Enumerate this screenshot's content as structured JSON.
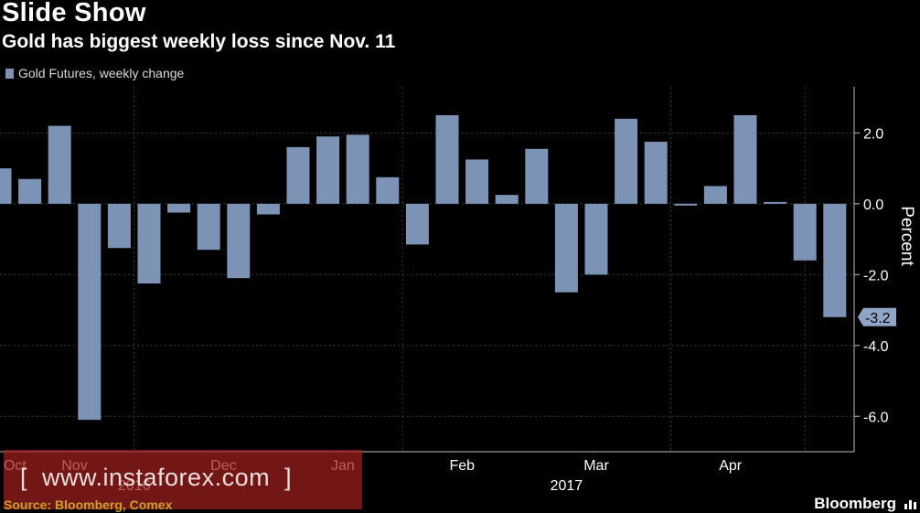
{
  "title": "Slide Show",
  "subtitle": "Gold has biggest weekly loss since Nov. 11",
  "legend_label": "Gold Futures, weekly change",
  "source": "Source: Bloomberg, Comex",
  "brand": "Bloomberg",
  "watermark": "[  www.instaforex.com  ]",
  "colors": {
    "bar": "#7c93b6",
    "background": "#000000",
    "grid": "#3c3c3c",
    "axis": "#bfbfbf",
    "label_box": "#8fa6c7",
    "source": "#c9a227",
    "watermark": "#a01e1e"
  },
  "chart_data": {
    "type": "bar",
    "title": "Slide Show",
    "subtitle": "Gold has biggest weekly loss since Nov. 11",
    "ylabel": "Percent",
    "xlabel": "",
    "ylim": [
      -7,
      3.3
    ],
    "yticks": [
      2.0,
      0.0,
      -2.0,
      -4.0,
      -6.0
    ],
    "grid": true,
    "legend": "top-left",
    "series": [
      {
        "name": "Gold Futures, weekly change",
        "values": [
          1.0,
          0.7,
          2.2,
          -6.1,
          -1.25,
          -2.25,
          -0.25,
          -1.3,
          -2.1,
          -0.3,
          1.6,
          1.9,
          1.95,
          0.75,
          -1.15,
          2.5,
          1.25,
          0.25,
          1.55,
          -2.5,
          -2.0,
          2.4,
          1.75,
          -0.05,
          0.5,
          2.5,
          0.05,
          -1.6,
          -3.2
        ]
      }
    ],
    "month_labels": [
      "Oct",
      "Nov",
      "Dec",
      "Jan",
      "Feb",
      "Mar",
      "Apr"
    ],
    "month_positions": [
      0.5,
      2.5,
      7.5,
      11.5,
      15.5,
      20,
      24.5
    ],
    "month_dividers": [
      4.5,
      13.5,
      22.5,
      27
    ],
    "year_labels": [
      "2016",
      "2017"
    ],
    "year_positions": [
      4.5,
      19
    ],
    "last_value_label": "-3.2"
  }
}
